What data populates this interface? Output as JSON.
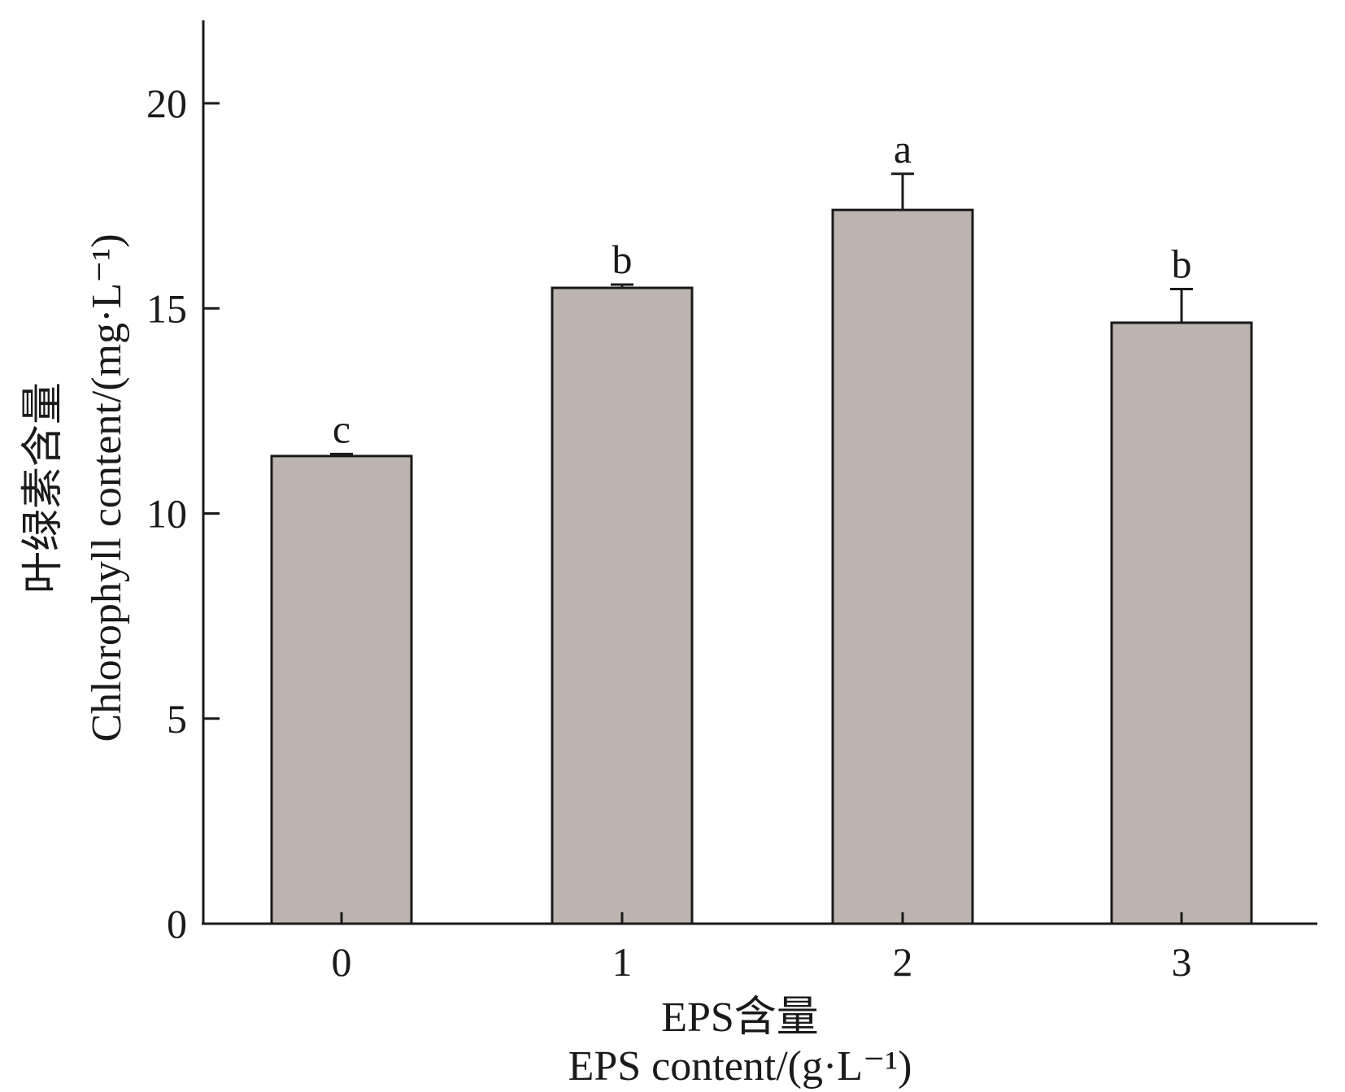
{
  "chart_data": {
    "type": "bar",
    "categories": [
      "0",
      "1",
      "2",
      "3"
    ],
    "values": [
      11.4,
      15.5,
      17.4,
      14.65
    ],
    "errors": [
      0.05,
      0.08,
      0.88,
      0.82
    ],
    "significance": [
      "c",
      "b",
      "a",
      "b"
    ],
    "ylim": [
      0,
      22
    ],
    "yticks": [
      "0",
      "5",
      "10",
      "15",
      "20"
    ],
    "ytick_values": [
      0,
      5,
      10,
      15,
      20
    ],
    "ylabel_cn": "叶绿素含量",
    "ylabel_en": "Chlorophyll content/(mg·L⁻¹)",
    "xlabel_cn": "EPS含量",
    "xlabel_en": "EPS content/(g·L⁻¹)",
    "bar_color": "#bdb4b0",
    "grid": false,
    "legend": "none"
  }
}
